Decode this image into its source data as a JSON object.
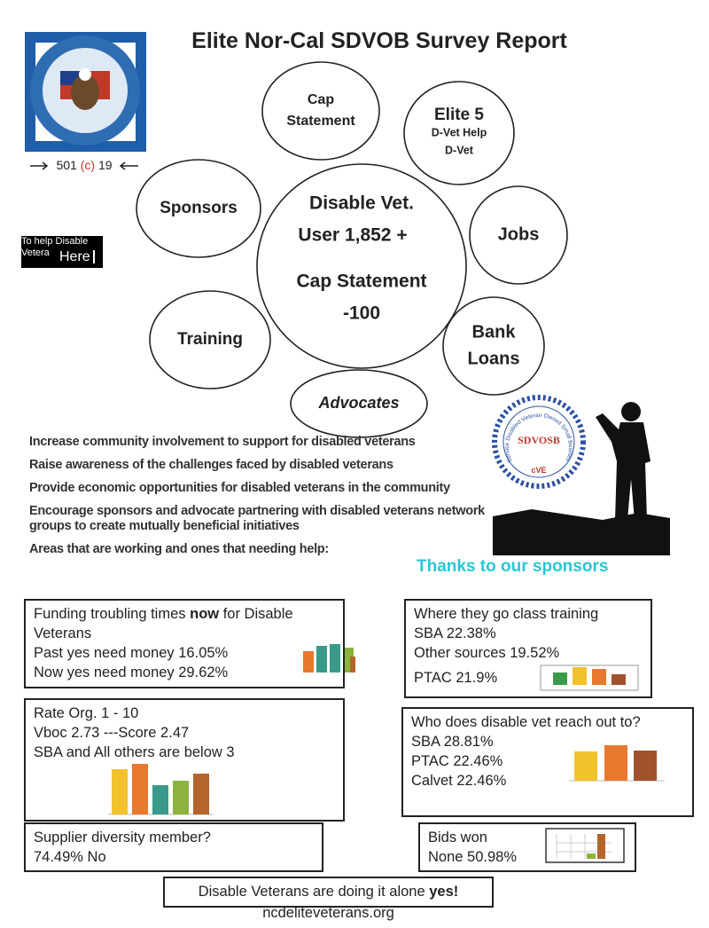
{
  "header": {
    "title": "Elite Nor-Cal SDVOB Survey Report"
  },
  "logo": {
    "caption": [
      "501",
      "(c)",
      "19"
    ]
  },
  "help": {
    "line1": "To help Disable",
    "line2": "Vetera",
    "button": "Here"
  },
  "circles": [
    {
      "lines": [
        "Cap",
        "Statement"
      ]
    },
    {
      "lines": [
        "Elite 5",
        "D-Vet Help",
        "D-Vet"
      ]
    },
    {
      "lines": [
        "Sponsors"
      ]
    },
    {
      "lines": [
        "Jobs"
      ]
    },
    {
      "lines": [
        "Disable Vet.",
        "User 1,852 +",
        "Cap Statement",
        "-100"
      ]
    },
    {
      "lines": [
        "Training"
      ]
    },
    {
      "lines": [
        "Bank",
        "Loans"
      ]
    },
    {
      "lines": [
        "Advocates"
      ]
    }
  ],
  "goals": [
    "Increase community involvement to support for disabled veterans",
    "Raise awareness of the challenges faced by disabled veterans",
    "Provide economic opportunities for disabled veterans in the community",
    "Encourage sponsors and advocate partnering with disabled veterans network groups to create mutually beneficial initiatives",
    "Areas that are working and ones that needing help:"
  ],
  "badge": {
    "name": "SDVOSB",
    "ring": "Service Disabled Veteran Owned Small Business",
    "mark": "cVE"
  },
  "sponsors_note": "Thanks to our sponsors",
  "boxes": [
    {
      "heading": [
        "Funding troubling times ",
        "now",
        " for Disable Veterans"
      ],
      "lines": [
        "Past yes need money 16.05%",
        "Now yes need money 29.62%"
      ]
    },
    {
      "heading": [
        "Where they go class training"
      ],
      "lines": [
        "SBA 22.38%",
        "Other sources 19.52%",
        "PTAC 21.9%"
      ]
    },
    {
      "heading": [
        "Rate Org. 1 - 10"
      ],
      "lines": [
        "Vboc 2.73 ---Score 2.47",
        "SBA and All others are below 3"
      ]
    },
    {
      "heading": [
        "Who does disable vet reach out to?"
      ],
      "lines": [
        "SBA 28.81%",
        "PTAC 22.46%",
        "Calvet 22.46%"
      ]
    },
    {
      "heading": [
        "Supplier diversity member?"
      ],
      "lines": [
        "74.49% No"
      ]
    },
    {
      "heading": [
        "Bids won"
      ],
      "lines": [
        "None 50.98%"
      ]
    }
  ],
  "footer": {
    "text": [
      "Disable Veterans are doing it alone ",
      "yes!"
    ],
    "website": "ncdeliteveterans.org"
  }
}
